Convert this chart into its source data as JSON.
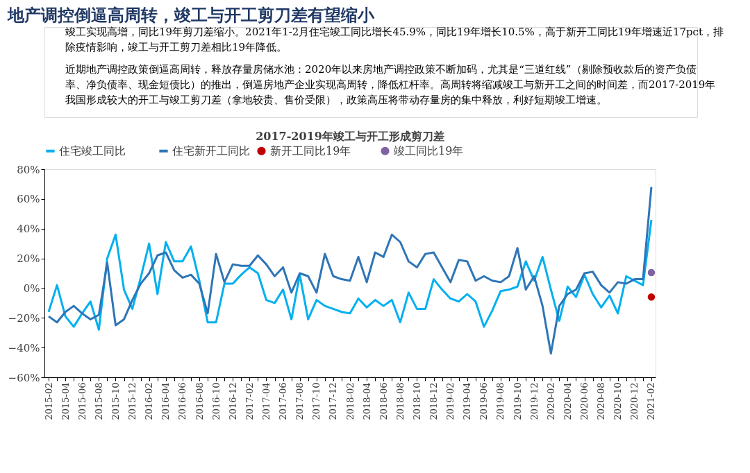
{
  "chart_data": {
    "type": "line",
    "title": "地产调控倒逼高周转，竣工与开工剪刀差有望缩小",
    "subtitle": "2017-2019年竣工与开工形成剪刀差",
    "annotations": [
      "竣工实现高增，同比19年剪刀差缩小。2021年1-2月住宅竣工同比增长45.9%，同比19年增长10.5%，高于新开工同比19年增速近17pct，排除疫情影响，竣工与开工剪刀差相比19年降低。",
      "近期地产调控政策倒逼高周转，释放存量房储水池：2020年以来房地产调控政策不断加码，尤其是“三道红线”（剔除预收款后的资产负债率、净负债率、现金短债比）的推出，倒逼房地产企业实现高周转，降低杠杆率。高周转将缩减竣工与新开工之间的时间差，而2017-2019年我国形成较大的开工与竣工剪刀差（拿地较贵、售价受限），政策高压将带动存量房的集中释放，利好短期竣工增速。"
    ],
    "categories": [
      "2015-02",
      null,
      "2015-04",
      null,
      "2015-06",
      null,
      "2015-08",
      null,
      "2015-10",
      null,
      "2015-12",
      null,
      "2016-02",
      null,
      "2016-04",
      null,
      "2016-06",
      null,
      "2016-08",
      null,
      "2016-10",
      null,
      "2016-12",
      null,
      "2017-02",
      null,
      "2017-04",
      null,
      "2017-06",
      null,
      "2017-08",
      null,
      "2017-10",
      null,
      "2017-12",
      null,
      "2018-02",
      null,
      "2018-04",
      null,
      "2018-06",
      null,
      "2018-08",
      null,
      "2018-10",
      null,
      "2018-12",
      null,
      "2019-02",
      null,
      "2019-04",
      null,
      "2019-06",
      null,
      "2019-08",
      null,
      "2019-10",
      null,
      "2019-12",
      null,
      "2020-02",
      null,
      "2020-04",
      null,
      "2020-06",
      null,
      "2020-08",
      null,
      "2020-10",
      null,
      "2020-12",
      null,
      "2021-02"
    ],
    "series": [
      {
        "name": "住宅竣工同比",
        "color": "#00b0f0",
        "values": [
          -16,
          2,
          -19,
          -26,
          -17,
          -9,
          -28,
          20,
          36,
          -1,
          -14,
          7,
          30,
          -4,
          31,
          18,
          18,
          28,
          5,
          -23,
          -23,
          3,
          3,
          9,
          14,
          10,
          -8,
          -10,
          -1,
          -21,
          9,
          -21,
          -8,
          -12,
          -14,
          -16,
          -17,
          -7,
          -13,
          -8,
          -12,
          -8,
          -23,
          -3,
          -14,
          -14,
          6,
          -1,
          -7,
          -9,
          -4,
          -9,
          -26,
          -15,
          -2,
          -1,
          1,
          18,
          5,
          21,
          -1,
          -22,
          1,
          -6,
          9,
          -4,
          -13,
          -5,
          -17,
          8,
          5,
          2,
          45.9
        ]
      },
      {
        "name": "住宅新开工同比",
        "color": "#2e75b6",
        "values": [
          -19,
          -23,
          -16,
          -12,
          -17,
          -21,
          -18,
          17,
          -25,
          -21,
          -8,
          3,
          10,
          22,
          24,
          12,
          7,
          9,
          3,
          -17,
          23,
          4,
          16,
          15,
          15,
          22,
          16,
          8,
          14,
          -3,
          10,
          8,
          -3,
          23,
          8,
          6,
          5,
          21,
          4,
          24,
          21,
          36,
          31,
          18,
          14,
          23,
          24,
          14,
          4,
          19,
          18,
          5,
          8,
          5,
          4,
          8,
          27,
          -1,
          8,
          -12,
          -44,
          -12,
          -4,
          -1,
          10,
          11,
          2,
          -3,
          4,
          3,
          6,
          6,
          68
        ]
      },
      {
        "name": "新开工同比19年",
        "type": "scatter",
        "color": "#c00000",
        "values": [
          null,
          null,
          null,
          null,
          null,
          null,
          null,
          null,
          null,
          null,
          null,
          null,
          null,
          null,
          null,
          null,
          null,
          null,
          null,
          null,
          null,
          null,
          null,
          null,
          null,
          null,
          null,
          null,
          null,
          null,
          null,
          null,
          null,
          null,
          null,
          null,
          null,
          null,
          null,
          null,
          null,
          null,
          null,
          null,
          null,
          null,
          null,
          null,
          null,
          null,
          null,
          null,
          null,
          null,
          null,
          null,
          null,
          null,
          null,
          null,
          null,
          null,
          null,
          null,
          null,
          null,
          null,
          null,
          null,
          null,
          null,
          null,
          -6
        ]
      },
      {
        "name": "竣工同比19年",
        "type": "scatter",
        "color": "#8064a2",
        "values": [
          null,
          null,
          null,
          null,
          null,
          null,
          null,
          null,
          null,
          null,
          null,
          null,
          null,
          null,
          null,
          null,
          null,
          null,
          null,
          null,
          null,
          null,
          null,
          null,
          null,
          null,
          null,
          null,
          null,
          null,
          null,
          null,
          null,
          null,
          null,
          null,
          null,
          null,
          null,
          null,
          null,
          null,
          null,
          null,
          null,
          null,
          null,
          null,
          null,
          null,
          null,
          null,
          null,
          null,
          null,
          null,
          null,
          null,
          null,
          null,
          null,
          null,
          null,
          null,
          null,
          null,
          null,
          null,
          null,
          null,
          null,
          null,
          10.5
        ]
      }
    ],
    "ylim": [
      -60,
      80
    ],
    "yticks": [
      {
        "value": -60,
        "label": "−60%"
      },
      {
        "value": -40,
        "label": "−40%"
      },
      {
        "value": -20,
        "label": "−20%"
      },
      {
        "value": 0,
        "label": "0%"
      },
      {
        "value": 20,
        "label": "20%"
      },
      {
        "value": 40,
        "label": "40%"
      },
      {
        "value": 60,
        "label": "60%"
      },
      {
        "value": 80,
        "label": "80%"
      }
    ],
    "grid": false,
    "legend": "top"
  }
}
